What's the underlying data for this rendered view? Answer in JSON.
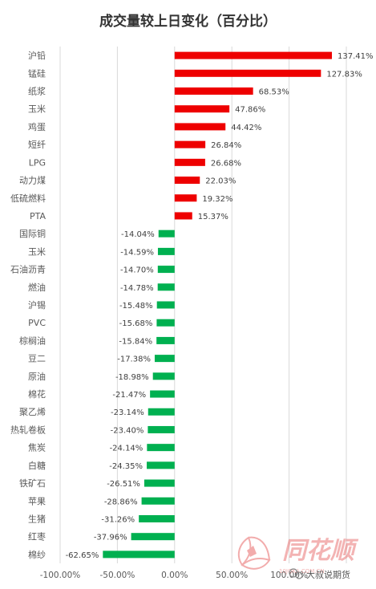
{
  "chart_data": {
    "type": "bar",
    "orientation": "horizontal",
    "title": "成交量较上日变化（百分比）",
    "categories": [
      "沪铅",
      "锰硅",
      "纸浆",
      "玉米",
      "鸡蛋",
      "短纤",
      "LPG",
      "动力煤",
      "低硫燃料",
      "PTA",
      "国际铜",
      "玉米",
      "石油沥青",
      "燃油",
      "沪锡",
      "PVC",
      "棕榈油",
      "豆二",
      "原油",
      "棉花",
      "聚乙烯",
      "热轧卷板",
      "焦炭",
      "白糖",
      "铁矿石",
      "苹果",
      "生猪",
      "红枣",
      "棉纱"
    ],
    "values": [
      137.41,
      127.83,
      68.53,
      47.86,
      44.42,
      26.84,
      26.68,
      22.03,
      19.32,
      15.37,
      -14.04,
      -14.59,
      -14.7,
      -14.78,
      -15.48,
      -15.68,
      -15.84,
      -17.38,
      -18.98,
      -21.47,
      -23.14,
      -23.4,
      -24.14,
      -24.35,
      -26.51,
      -28.86,
      -31.26,
      -37.96,
      -62.65
    ],
    "data_labels": [
      "137.41%",
      "127.83%",
      "68.53%",
      "47.86%",
      "44.42%",
      "26.84%",
      "26.68%",
      "22.03%",
      "19.32%",
      "15.37%",
      "-14.04%",
      "-14.59%",
      "-14.70%",
      "-14.78%",
      "-15.48%",
      "-15.68%",
      "-15.84%",
      "-17.38%",
      "-18.98%",
      "-21.47%",
      "-23.14%",
      "-23.40%",
      "-24.14%",
      "-24.35%",
      "-26.51%",
      "-28.86%",
      "-31.26%",
      "-37.96%",
      "-62.65%"
    ],
    "xlim": [
      -100,
      150
    ],
    "x_ticks": [
      -100,
      -50,
      0,
      50,
      100
    ],
    "x_tick_labels": [
      "-100.00%",
      "-50.00%",
      "0.00%",
      "50.00%",
      "100.00%"
    ],
    "grid": "vertical",
    "legend": "none",
    "colors": {
      "positive": "#ee0000",
      "negative": "#00b050",
      "grid": "#d9d9d9",
      "text": "#595959"
    }
  },
  "watermark": {
    "brand": "同花顺",
    "account": "大叔说期货",
    "url": "10JQKA.COM.CN",
    "color": "#e86a6a"
  }
}
